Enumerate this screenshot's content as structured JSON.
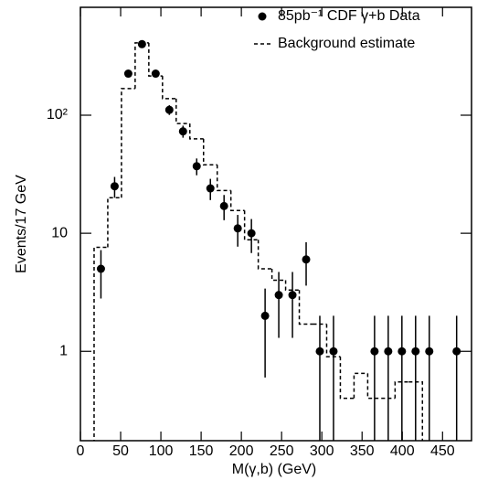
{
  "chart_data": [
    {
      "type": "errorbar",
      "x_label": "M(γ,b) (GeV)",
      "y_label": "Events/17 GeV",
      "log_y": true,
      "xlim": [
        0,
        486
      ],
      "ylim": [
        0.175,
        820
      ],
      "xticks": [
        0,
        50,
        100,
        150,
        200,
        250,
        300,
        350,
        400,
        450
      ],
      "yticks": [
        {
          "value": 1,
          "label": "1"
        },
        {
          "value": 10,
          "label": "10"
        },
        {
          "value": 100,
          "label": "10²"
        }
      ],
      "legend": "upper right",
      "series": [
        {
          "name": "85pb⁻¹  CDF γ+b Data",
          "color": "#000000",
          "x": [
            25.5,
            42.5,
            59.5,
            76.5,
            93.5,
            110.5,
            127.5,
            144.5,
            161.5,
            178.5,
            195.5,
            212.5,
            229.5,
            246.5,
            263.5,
            280.5,
            297.5,
            314.5,
            365.5,
            382.5,
            399.5,
            416.5,
            433.5,
            467.5
          ],
          "values": [
            5,
            25,
            225,
            400,
            225,
            111,
            73,
            37,
            24,
            17,
            11,
            10,
            2,
            3,
            3,
            6,
            1,
            1,
            1,
            1,
            1,
            1,
            1,
            1
          ],
          "errors": [
            2.2,
            5,
            15,
            20,
            15,
            10.5,
            8.5,
            6,
            4.9,
            4.1,
            3.3,
            3.2,
            1.4,
            1.7,
            1.7,
            2.4,
            1,
            1,
            1,
            1,
            1,
            1,
            1,
            1
          ]
        }
      ]
    },
    {
      "type": "step",
      "series": [
        {
          "name": "Background estimate",
          "color": "#000000",
          "bins": [
            17,
            34,
            51,
            68,
            85,
            102,
            119,
            136,
            153,
            170,
            187,
            204,
            221,
            238,
            255,
            272,
            289,
            306,
            323,
            340,
            357,
            374,
            391,
            408,
            425
          ],
          "values": [
            7.6,
            20,
            168,
            410,
            215,
            138,
            85,
            63,
            38,
            23,
            15.6,
            8.8,
            5,
            4,
            3.3,
            1.7,
            1.7,
            0.9,
            0.4,
            0.65,
            0.4,
            0.4,
            0.55,
            0.55
          ]
        }
      ]
    }
  ]
}
